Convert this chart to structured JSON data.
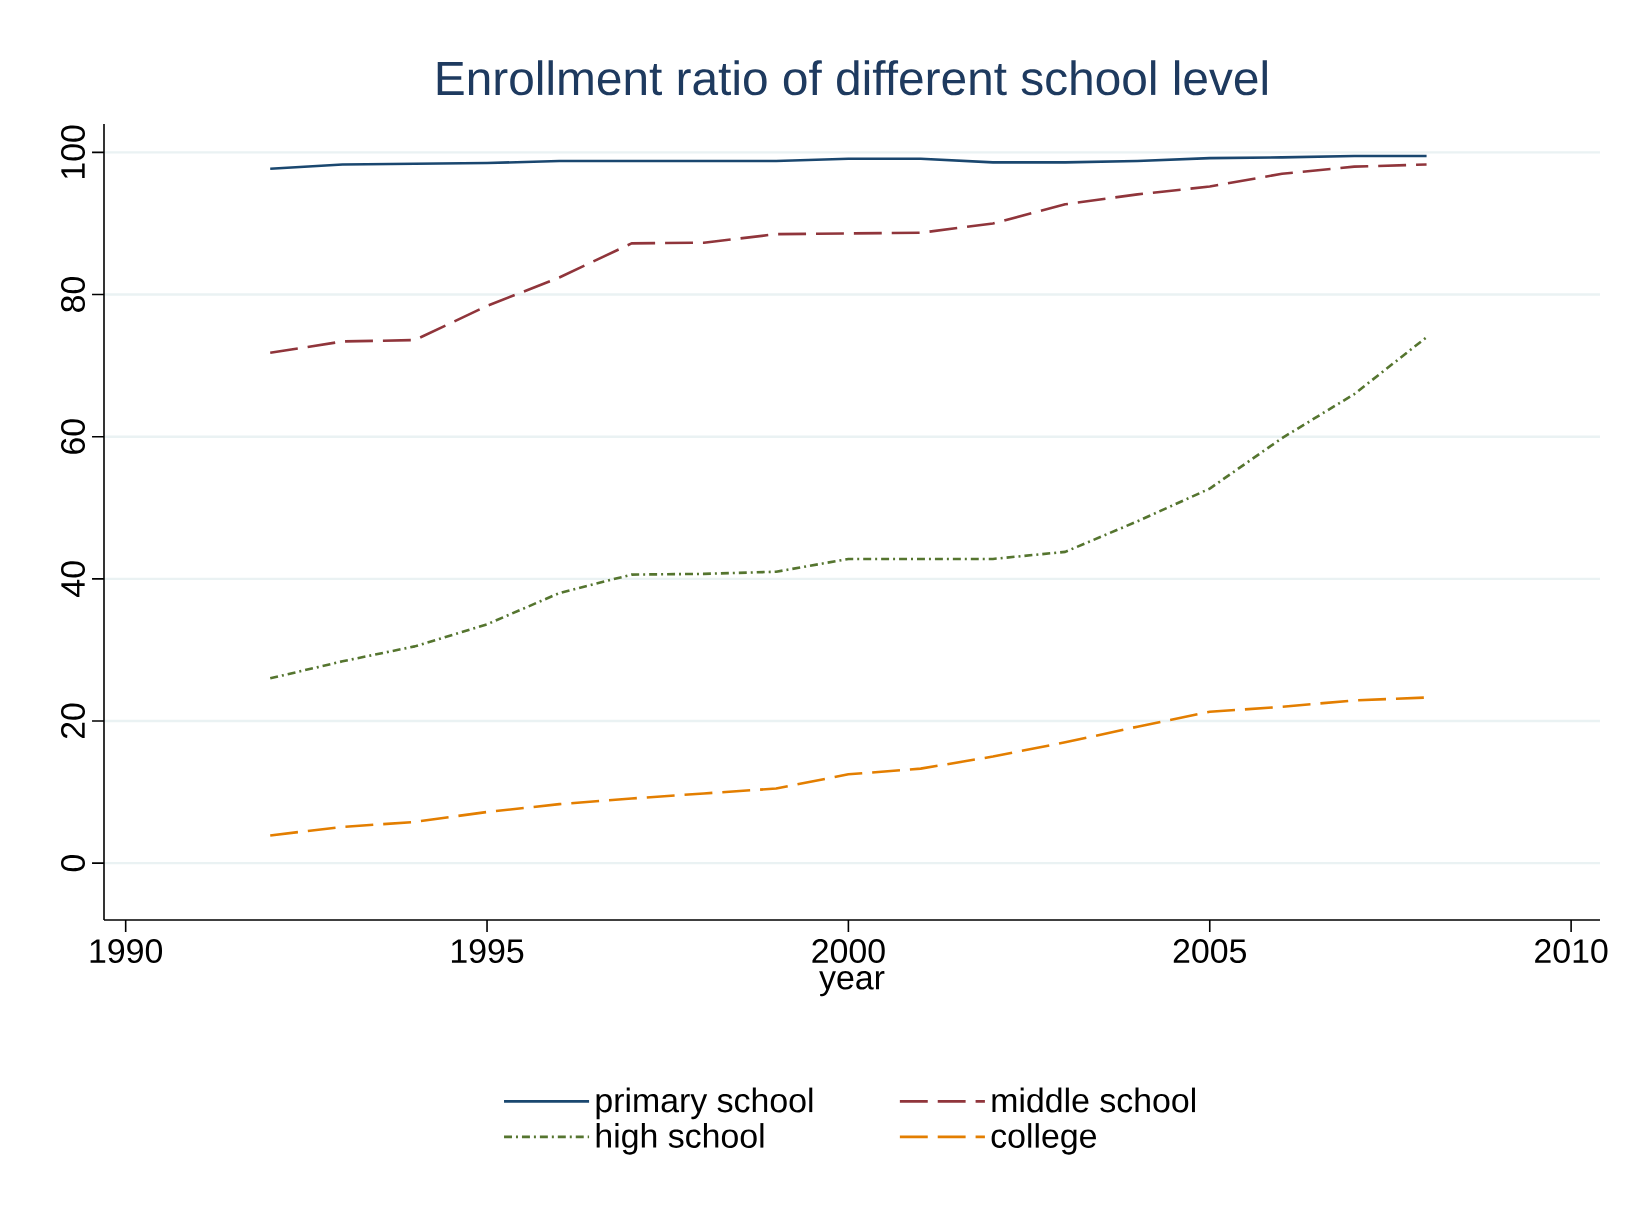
{
  "chart_data": {
    "type": "line",
    "title": "Enrollment ratio of different school level",
    "xlabel": "year",
    "x": [
      1992,
      1993,
      1994,
      1995,
      1996,
      1997,
      1998,
      1999,
      2000,
      2001,
      2002,
      2003,
      2004,
      2005,
      2006,
      2007,
      2008
    ],
    "series": [
      {
        "name": "primary school",
        "color": "#1a476f",
        "line_style": "solid",
        "values": [
          97.7,
          98.3,
          98.4,
          98.5,
          98.8,
          98.8,
          98.8,
          98.8,
          99.1,
          99.1,
          98.6,
          98.6,
          98.8,
          99.2,
          99.3,
          99.5,
          99.5
        ]
      },
      {
        "name": "middle school",
        "color": "#90353b",
        "line_style": "dashed",
        "values": [
          71.8,
          73.4,
          73.6,
          78.4,
          82.4,
          87.2,
          87.3,
          88.5,
          88.6,
          88.7,
          90.0,
          92.7,
          94.1,
          95.2,
          97.0,
          98.0,
          98.3
        ]
      },
      {
        "name": "high school",
        "color": "#55752f",
        "line_style": "dotted",
        "values": [
          26.0,
          28.4,
          30.5,
          33.6,
          38.0,
          40.6,
          40.7,
          41.0,
          42.8,
          42.8,
          42.8,
          43.8,
          48.1,
          52.7,
          59.8,
          66.0,
          74.0
        ]
      },
      {
        "name": "college",
        "color": "#e37e00",
        "line_style": "dashed",
        "values": [
          3.9,
          5.1,
          5.8,
          7.2,
          8.3,
          9.1,
          9.8,
          10.5,
          12.5,
          13.3,
          15.0,
          17.0,
          19.2,
          21.3,
          22.0,
          22.9,
          23.3
        ]
      }
    ],
    "xlim": [
      1989.7,
      2010.4
    ],
    "ylim": [
      -8,
      104
    ],
    "xticks": [
      1990,
      1995,
      2000,
      2005,
      2010
    ],
    "yticks": [
      0,
      20,
      40,
      60,
      80,
      100
    ],
    "grid": "y",
    "legend": "bottom",
    "marker": "none"
  }
}
